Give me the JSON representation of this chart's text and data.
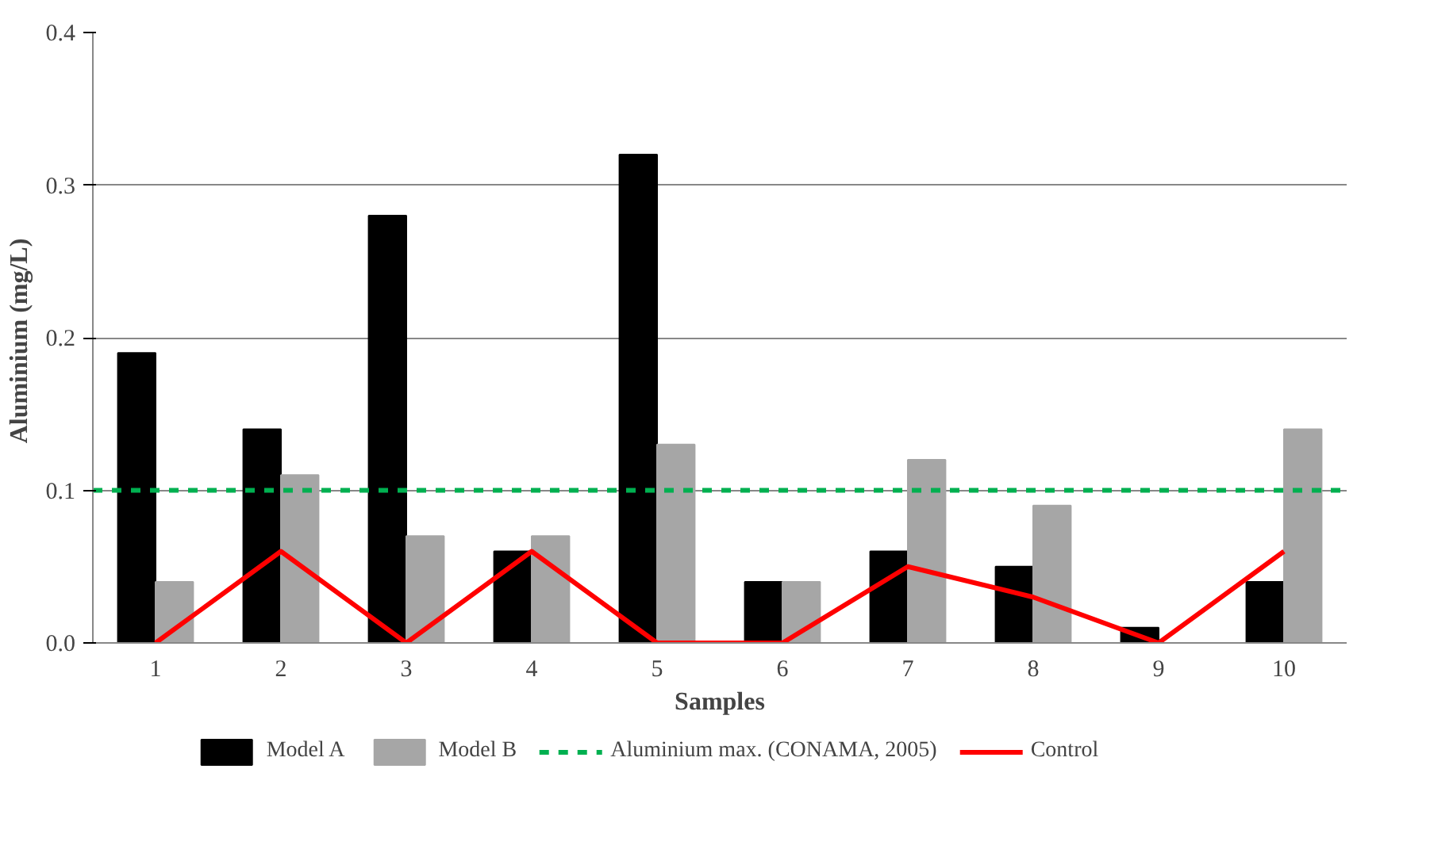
{
  "chart_data": {
    "type": "bar",
    "xlabel": "Samples",
    "ylabel": "Aluminium  (mg/L)",
    "categories": [
      "1",
      "2",
      "3",
      "4",
      "5",
      "6",
      "7",
      "8",
      "9",
      "10"
    ],
    "series": [
      {
        "name": "Model A",
        "color": "#000000",
        "values": [
          0.19,
          0.14,
          0.28,
          0.06,
          0.32,
          0.04,
          0.06,
          0.05,
          0.01,
          0.04
        ]
      },
      {
        "name": "Model B",
        "color": "#a6a6a6",
        "values": [
          0.04,
          0.11,
          0.07,
          0.07,
          0.13,
          0.04,
          0.12,
          0.09,
          0,
          0.14
        ]
      },
      {
        "name": "Control",
        "type": "line",
        "color": "#ff0000",
        "values": [
          0,
          0.06,
          0,
          0.06,
          0,
          0,
          0.05,
          0.03,
          0,
          0.06
        ]
      }
    ],
    "ref_lines": [
      {
        "axis": "y",
        "value": 0.1,
        "label": "Aluminium max. (CONAMA, 2005)",
        "color": "#00b050",
        "line_style": "dashed"
      }
    ],
    "ylim": [
      0,
      0.4
    ],
    "yticks": [
      {
        "value": 0,
        "label": "0.0"
      },
      {
        "value": 0.1,
        "label": "0.1"
      },
      {
        "value": 0.2,
        "label": "0.2"
      },
      {
        "value": 0.3,
        "label": "0.3"
      },
      {
        "value": 0.4,
        "label": "0.4"
      }
    ],
    "grid": "y",
    "legend": "bottom"
  }
}
